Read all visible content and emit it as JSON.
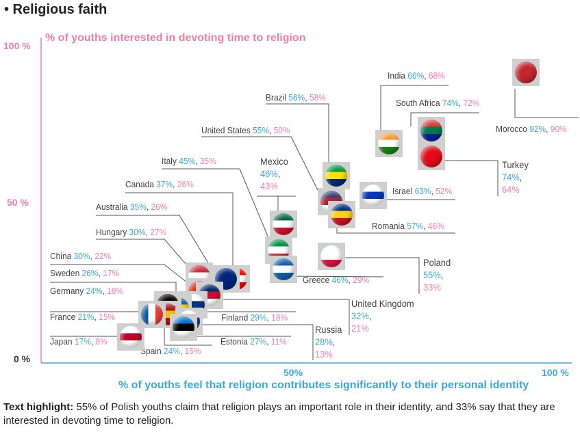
{
  "title": "• Religious faith",
  "footnote": {
    "bold": "Text highlight:",
    "text": " 55% of Polish youths claim that religion plays an important role in their identity, and 33% say that they are interested in devoting time to religion."
  },
  "colors": {
    "x_series": "#3aa9dc",
    "y_series": "#ef7fa4"
  },
  "chart_data": {
    "type": "scatter",
    "xlabel": "% of youths feel that religion contributes significantly to their personal identity",
    "ylabel": "% of youths interested in devoting time to religion",
    "xlim": [
      0,
      100
    ],
    "ylim": [
      0,
      100
    ],
    "x_ticks": [
      "50%",
      "100 %"
    ],
    "y_ticks": [
      "0 %",
      "50 %",
      "100 %"
    ],
    "grid": false,
    "points": [
      {
        "country": "India",
        "x": 66,
        "y": 68,
        "x_label": "66%",
        "y_label": "68%",
        "flag": [
          "#ff9933",
          "#ffffff",
          "#138808"
        ]
      },
      {
        "country": "South Africa",
        "x": 74,
        "y": 72,
        "x_label": "74%",
        "y_label": "72%",
        "flag": [
          "#de3831",
          "#007a4d",
          "#002395"
        ]
      },
      {
        "country": "Morocco",
        "x": 92,
        "y": 90,
        "x_label": "92%",
        "y_label": "90%",
        "flag": [
          "#c1272d",
          "#c1272d",
          "#c1272d"
        ]
      },
      {
        "country": "Turkey",
        "x": 74,
        "y": 64,
        "x_label": "74%",
        "y_label": "64%",
        "flag": [
          "#e30a17",
          "#e30a17",
          "#e30a17"
        ]
      },
      {
        "country": "Brazil",
        "x": 56,
        "y": 58,
        "x_label": "56%",
        "y_label": "58%",
        "flag": [
          "#009c3b",
          "#ffdf00",
          "#002776"
        ]
      },
      {
        "country": "United States",
        "x": 55,
        "y": 50,
        "x_label": "55%",
        "y_label": "50%",
        "flag": [
          "#3c3b6e",
          "#b22234",
          "#ffffff"
        ]
      },
      {
        "country": "Israel",
        "x": 63,
        "y": 52,
        "x_label": "63%",
        "y_label": "52%",
        "flag": [
          "#ffffff",
          "#0038b8",
          "#ffffff"
        ]
      },
      {
        "country": "Romania",
        "x": 57,
        "y": 46,
        "x_label": "57%",
        "y_label": "46%",
        "flag": [
          "#002b7f",
          "#fcd116",
          "#ce1126"
        ]
      },
      {
        "country": "Mexico",
        "x": 46,
        "y": 43,
        "x_label": "46%",
        "y_label": "43%",
        "flag": [
          "#006847",
          "#ffffff",
          "#ce1126"
        ]
      },
      {
        "country": "Italy",
        "x": 45,
        "y": 35,
        "x_label": "45%",
        "y_label": "35%",
        "flag": [
          "#009246",
          "#ffffff",
          "#ce2b37"
        ]
      },
      {
        "country": "Greece",
        "x": 46,
        "y": 29,
        "x_label": "46%",
        "y_label": "29%",
        "flag": [
          "#0d5eaf",
          "#ffffff",
          "#0d5eaf"
        ]
      },
      {
        "country": "Poland",
        "x": 55,
        "y": 33,
        "x_label": "55%",
        "y_label": "33%",
        "flag": [
          "#ffffff",
          "#ffffff",
          "#dc143c"
        ]
      },
      {
        "country": "Canada",
        "x": 37,
        "y": 26,
        "x_label": "37%",
        "y_label": "26%",
        "flag": [
          "#ff0000",
          "#ffffff",
          "#ff0000"
        ]
      },
      {
        "country": "Australia",
        "x": 35,
        "y": 26,
        "x_label": "35%",
        "y_label": "26%",
        "flag": [
          "#00247d",
          "#00247d",
          "#00247d"
        ]
      },
      {
        "country": "Hungary",
        "x": 30,
        "y": 27,
        "x_label": "30%",
        "y_label": "27%",
        "flag": [
          "#ce2939",
          "#ffffff",
          "#477050"
        ]
      },
      {
        "country": "China",
        "x": 30,
        "y": 22,
        "x_label": "30%",
        "y_label": "22%",
        "flag": [
          "#de2910",
          "#de2910",
          "#de2910"
        ]
      },
      {
        "country": "United Kingdom",
        "x": 32,
        "y": 21,
        "x_label": "32%",
        "y_label": "21%",
        "flag": [
          "#012169",
          "#c8102e",
          "#ffffff"
        ]
      },
      {
        "country": "Finland",
        "x": 29,
        "y": 18,
        "x_label": "29%",
        "y_label": "18%",
        "flag": [
          "#ffffff",
          "#003580",
          "#ffffff"
        ]
      },
      {
        "country": "Sweden",
        "x": 26,
        "y": 17,
        "x_label": "26%",
        "y_label": "17%",
        "flag": [
          "#006aa7",
          "#fecc00",
          "#006aa7"
        ]
      },
      {
        "country": "Germany",
        "x": 24,
        "y": 18,
        "x_label": "24%",
        "y_label": "18%",
        "flag": [
          "#000000",
          "#dd0000",
          "#ffce00"
        ]
      },
      {
        "country": "Spain",
        "x": 24,
        "y": 15,
        "x_label": "24%",
        "y_label": "15%",
        "flag": [
          "#aa151b",
          "#f1bf00",
          "#aa151b"
        ]
      },
      {
        "country": "France",
        "x": 21,
        "y": 15,
        "x_label": "21%",
        "y_label": "15%",
        "flag": [
          "#0055a4",
          "#ffffff",
          "#ef4135"
        ],
        "vertical": true
      },
      {
        "country": "Russia",
        "x": 28,
        "y": 13,
        "x_label": "28%",
        "y_label": "13%",
        "flag": [
          "#ffffff",
          "#0039a6",
          "#d52b1e"
        ]
      },
      {
        "country": "Estonia",
        "x": 27,
        "y": 11,
        "x_label": "27%",
        "y_label": "11%",
        "flag": [
          "#0072ce",
          "#000000",
          "#ffffff"
        ]
      },
      {
        "country": "Japan",
        "x": 17,
        "y": 8,
        "x_label": "17%",
        "y_label": "8%",
        "flag": [
          "#ffffff",
          "#bc002d",
          "#ffffff"
        ]
      }
    ]
  }
}
